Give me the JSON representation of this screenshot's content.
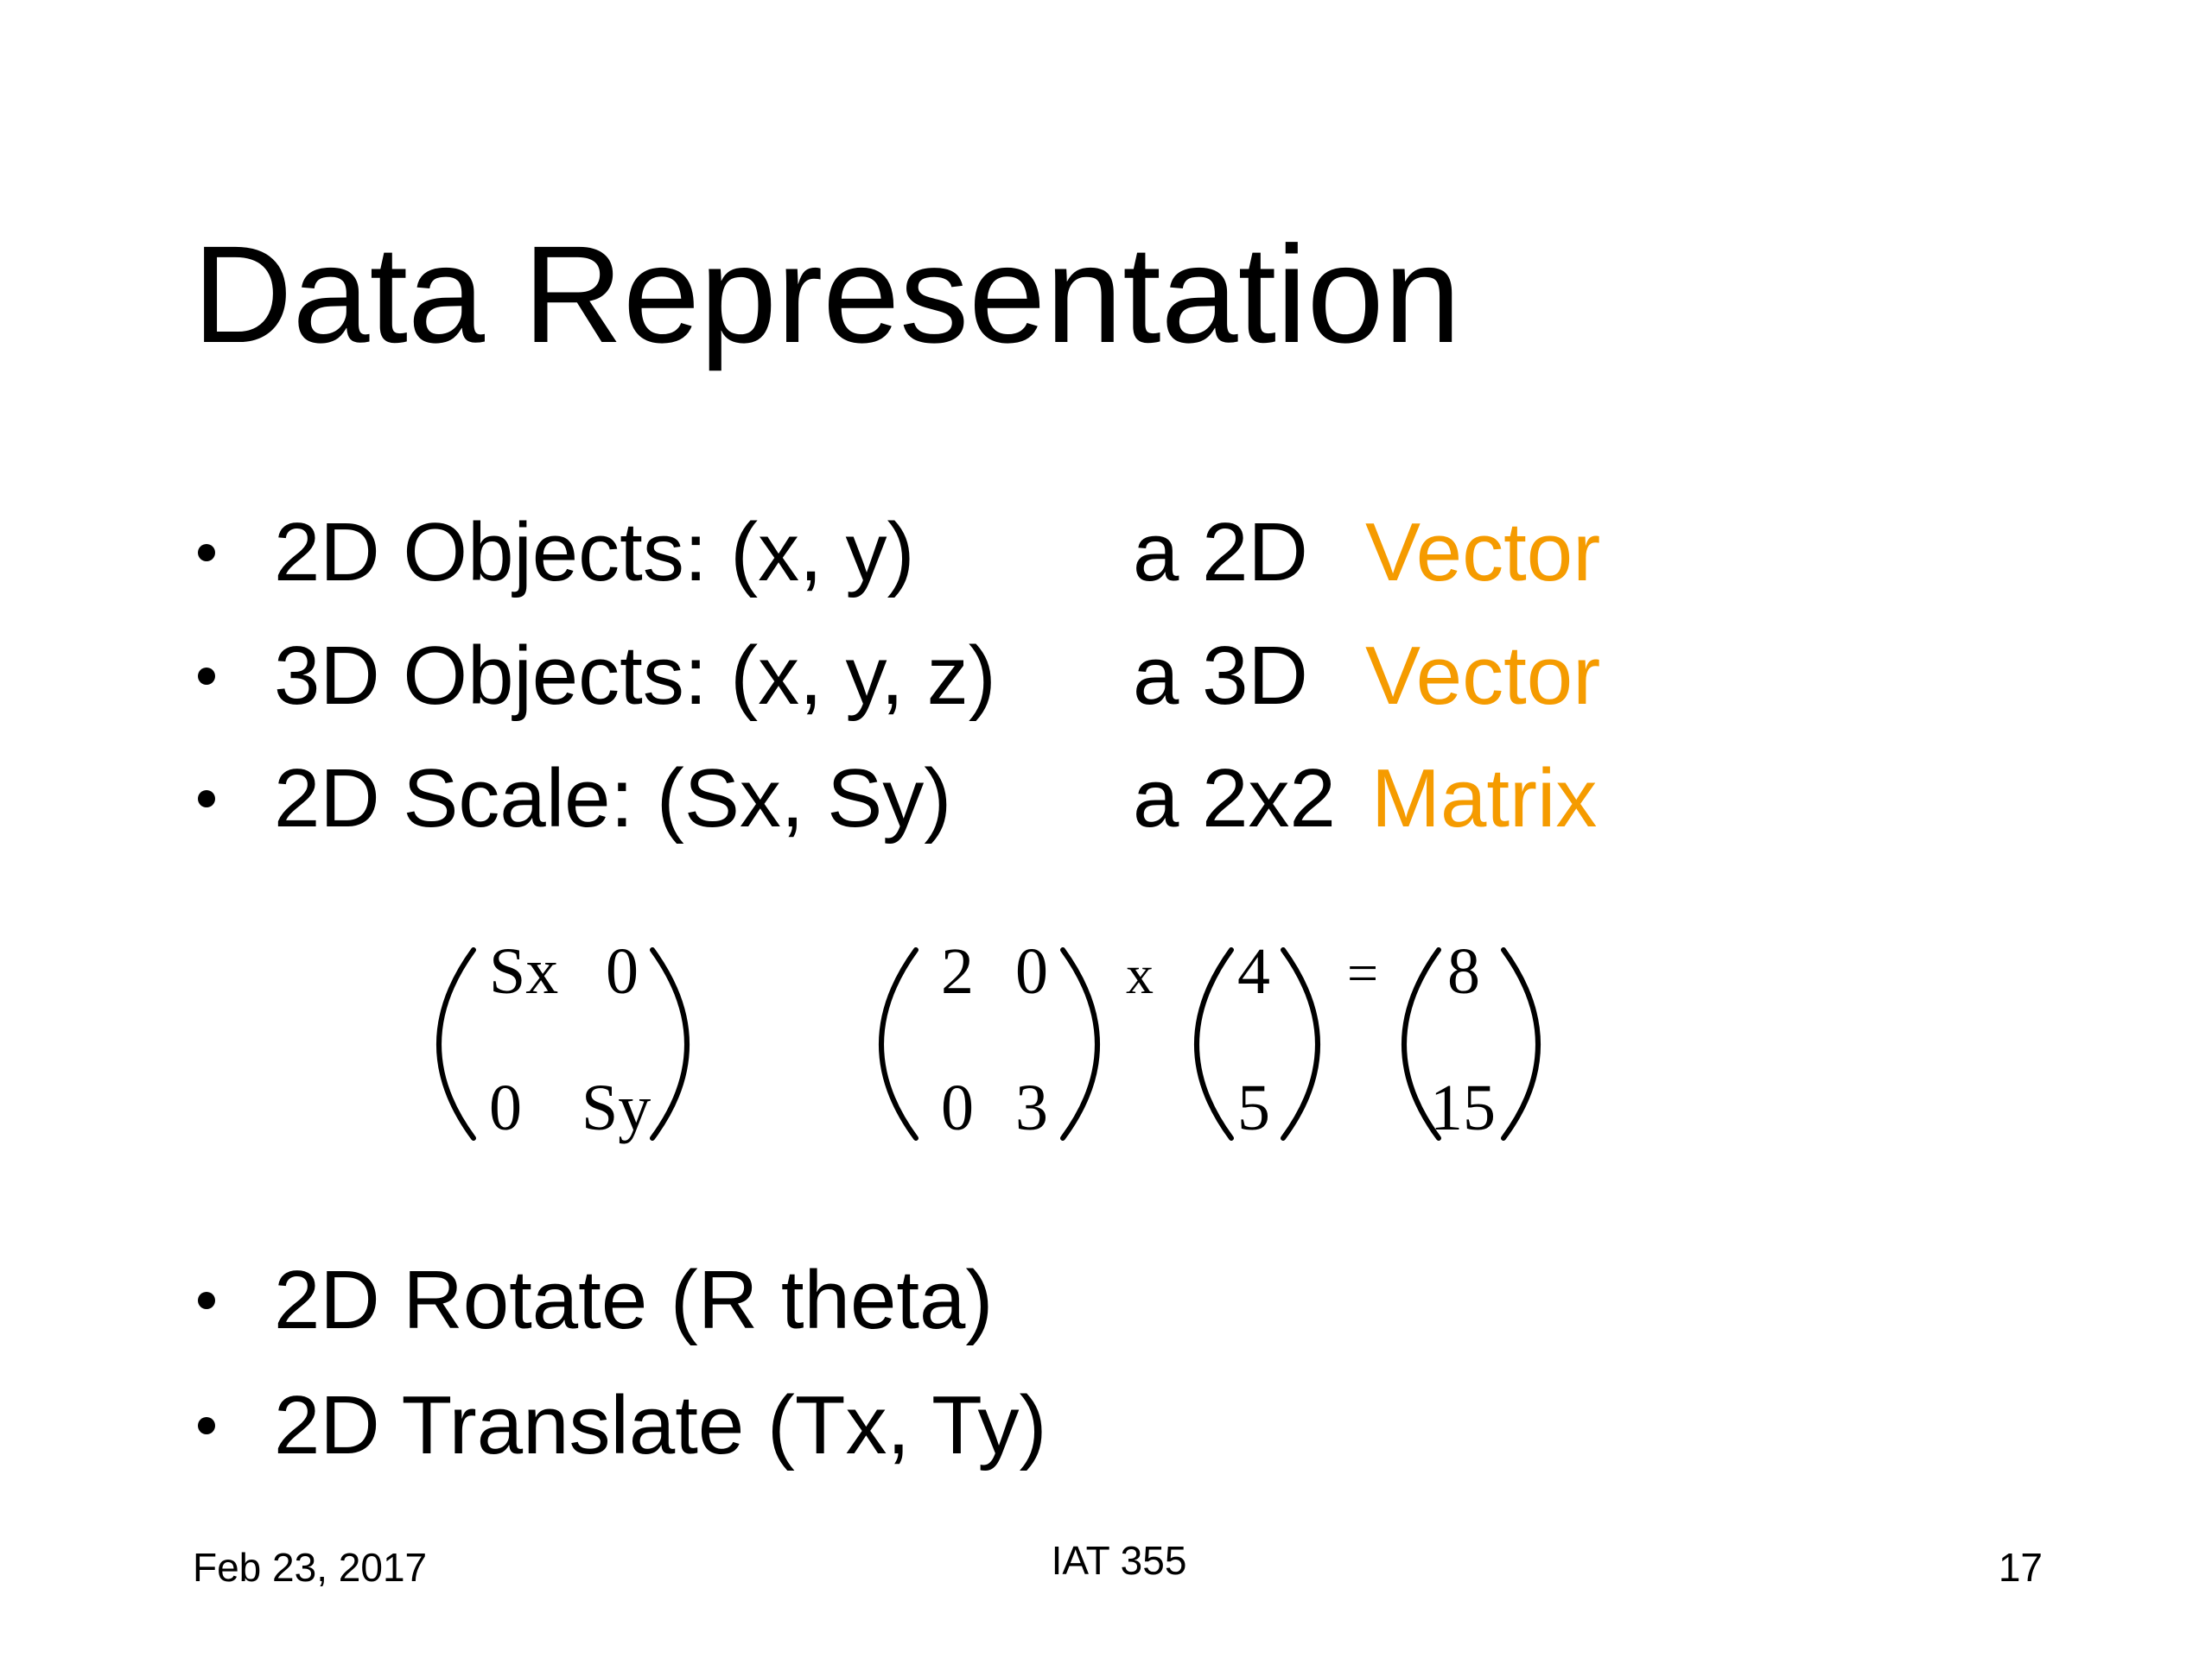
{
  "title": "Data Representation",
  "bullets": [
    {
      "text": "2D Objects: (x, y)",
      "kind": "a 2D",
      "term": "Vector"
    },
    {
      "text": "3D Objects: (x, y, z)",
      "kind": "a 3D",
      "term": "Vector"
    },
    {
      "text": "2D Scale: (Sx, Sy)",
      "kind": "a 2x2",
      "term": "Matrix"
    },
    {
      "text": "2D Rotate (R theta)"
    },
    {
      "text": "2D Translate (Tx, Ty)"
    }
  ],
  "equations": {
    "general": [
      [
        "Sx",
        "0"
      ],
      [
        "0",
        "Sy"
      ]
    ],
    "example": {
      "matrix": [
        [
          "2",
          "0"
        ],
        [
          "0",
          "3"
        ]
      ],
      "operator": "x",
      "vector": [
        [
          "4"
        ],
        [
          "5"
        ]
      ],
      "equals": "=",
      "result": [
        [
          "8"
        ],
        [
          "15"
        ]
      ]
    }
  },
  "footer": {
    "date": "Feb 23, 2017",
    "course": "IAT 355",
    "page": "17"
  }
}
